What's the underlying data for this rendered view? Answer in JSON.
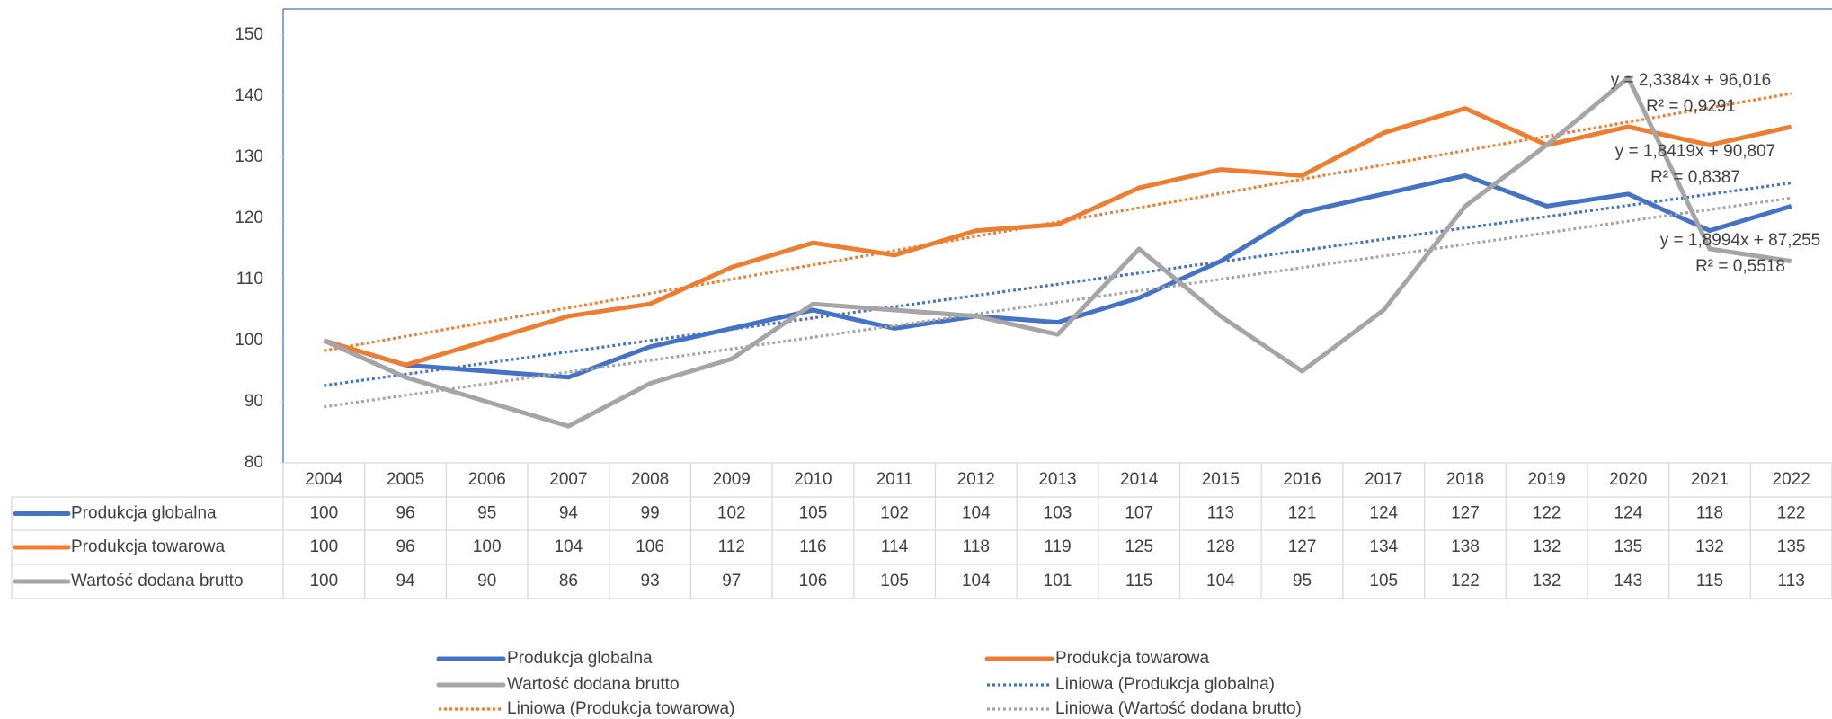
{
  "chart_data": {
    "type": "line",
    "categories": [
      "2004",
      "2005",
      "2006",
      "2007",
      "2008",
      "2009",
      "2010",
      "2011",
      "2012",
      "2013",
      "2014",
      "2015",
      "2016",
      "2017",
      "2018",
      "2019",
      "2020",
      "2021",
      "2022"
    ],
    "ylim": [
      80,
      150
    ],
    "yticks": [
      80,
      90,
      100,
      110,
      120,
      130,
      140,
      150
    ],
    "series": [
      {
        "name": "Produkcja globalna",
        "color": "#4472c4",
        "values": [
          100,
          96,
          95,
          94,
          99,
          102,
          105,
          102,
          104,
          103,
          107,
          113,
          121,
          124,
          127,
          122,
          124,
          118,
          122
        ],
        "trendline": {
          "name": "Liniowa (Produkcja globalna)",
          "slope": 1.8419,
          "intercept": 90.807,
          "equation": "y = 1,8419x + 90,807",
          "r2_label": "R² = 0,8387"
        }
      },
      {
        "name": "Produkcja towarowa",
        "color": "#ed7d31",
        "values": [
          100,
          96,
          100,
          104,
          106,
          112,
          116,
          114,
          118,
          119,
          125,
          128,
          127,
          134,
          138,
          132,
          135,
          132,
          135
        ],
        "trendline": {
          "name": "Liniowa (Produkcja towarowa)",
          "slope": 2.3384,
          "intercept": 96.016,
          "equation": "y = 2,3384x + 96,016",
          "r2_label": "R² = 0,9291"
        }
      },
      {
        "name": "Wartość dodana brutto",
        "color": "#a5a5a5",
        "values": [
          100,
          94,
          90,
          86,
          93,
          97,
          106,
          105,
          104,
          101,
          115,
          104,
          95,
          105,
          122,
          132,
          143,
          115,
          113
        ],
        "trendline": {
          "name": "Liniowa (Wartość dodana brutto)",
          "slope": 1.8994,
          "intercept": 87.255,
          "equation": "y = 1,8994x + 87,255",
          "r2_label": "R² = 0,5518"
        }
      }
    ]
  }
}
